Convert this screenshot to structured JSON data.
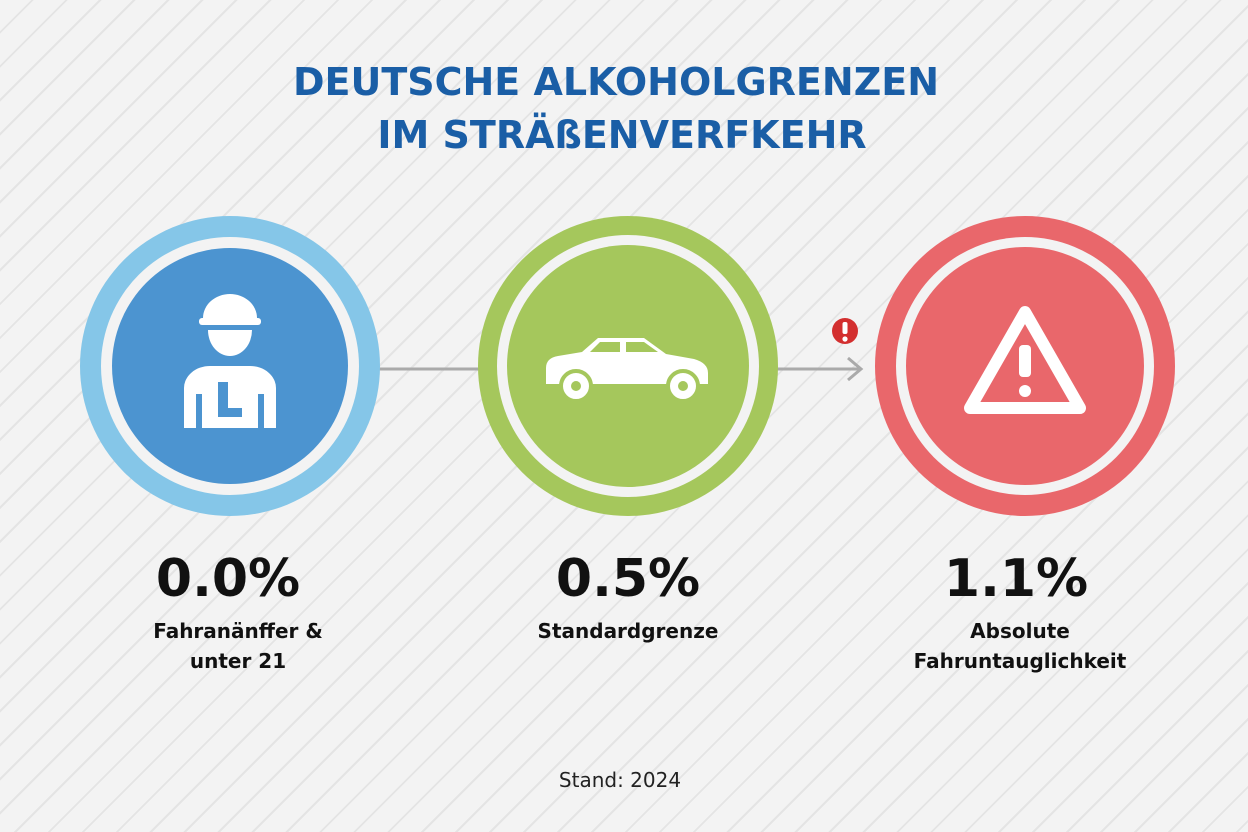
{
  "header": {
    "title_lines": [
      "DEUTSCHE ALKOHOLGRENZEN",
      "IM STRÄßENVERFKEHR"
    ]
  },
  "items": [
    {
      "value": "0.0%",
      "label_lines": [
        "Fahranänffer &",
        "unter 21"
      ]
    },
    {
      "value": "0.5%",
      "label_lines": [
        "Standardgrenze"
      ]
    },
    {
      "value": "1.1%",
      "label_lines": [
        "Absolute",
        "Fahruntauglichkeit"
      ]
    }
  ],
  "footer": "Stand: 2024"
}
